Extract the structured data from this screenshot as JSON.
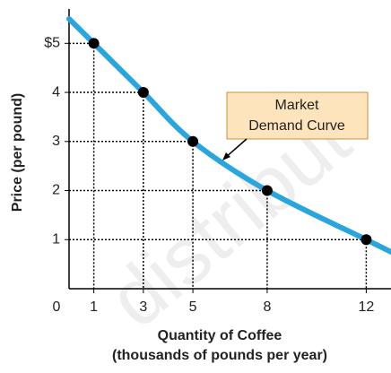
{
  "chart_data": {
    "type": "line",
    "x": [
      1,
      3,
      5,
      8,
      12
    ],
    "series": [
      {
        "name": "Market Demand Curve",
        "color": "#2aa6de",
        "values": [
          5,
          4,
          3,
          2,
          1
        ]
      }
    ],
    "xlim": [
      0,
      13
    ],
    "xticks": [
      0,
      1,
      3,
      5,
      8,
      12
    ],
    "ylim": [
      0,
      5.7
    ],
    "yticks": [
      1,
      2,
      3,
      4,
      {
        "value": 5,
        "label": "$5"
      }
    ],
    "xlabel": [
      "Quantity of Coffee",
      "(thousands of pounds per year)"
    ],
    "ylabel": "Price (per pound)",
    "annotation": [
      "Market",
      "Demand Curve"
    ],
    "watermark": "distribut"
  }
}
